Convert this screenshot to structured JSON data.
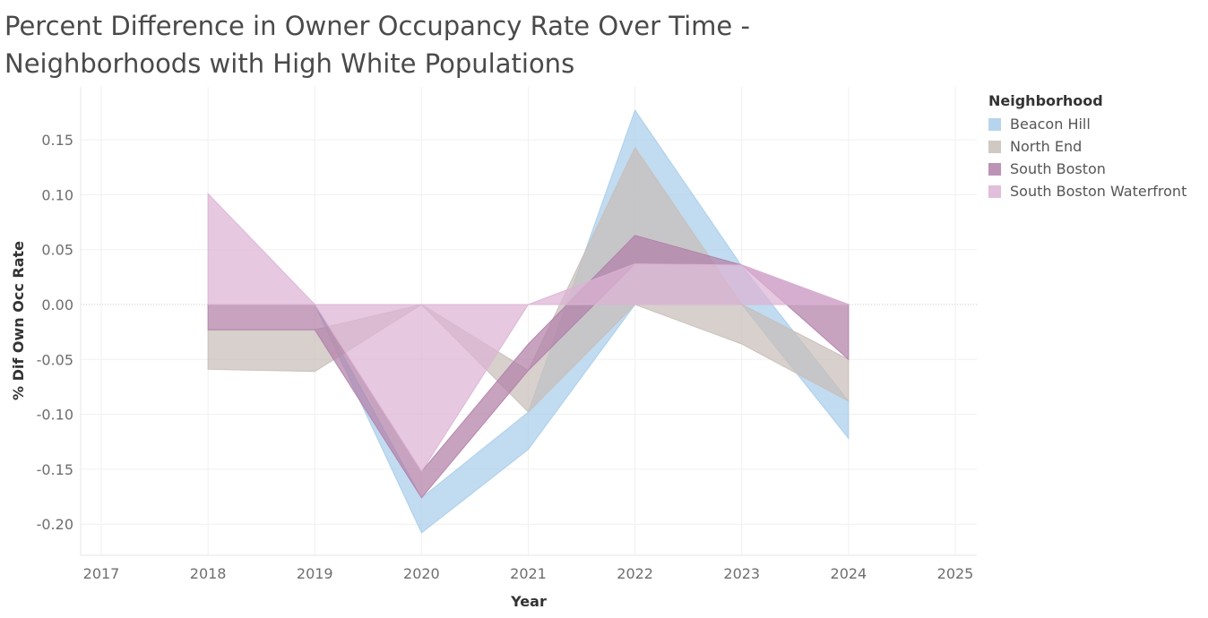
{
  "chart_data": {
    "type": "area",
    "title": "Percent Difference in Owner Occupancy Rate Over Time - Neighborhoods with High White Populations",
    "xlabel": "Year",
    "ylabel": "% Dif Own Occ Rate",
    "x_ticks": [
      "2017",
      "2018",
      "2019",
      "2020",
      "2021",
      "2022",
      "2023",
      "2024",
      "2025"
    ],
    "y_ticks": [
      "0.15",
      "0.10",
      "0.05",
      "0.00",
      "-0.05",
      "-0.10",
      "-0.15",
      "-0.20"
    ],
    "xlim": [
      2017,
      2025
    ],
    "ylim": [
      -0.225,
      0.19
    ],
    "grid": true,
    "legend": {
      "title": "Neighborhood",
      "placement": "right"
    },
    "series": [
      {
        "name": "Beacon Hill",
        "color": "#a9cdea",
        "x": [
          2019,
          2020,
          2021,
          2022,
          2023,
          2024
        ],
        "low": [
          0.0,
          -0.208,
          -0.132,
          0.0,
          0.0,
          -0.122
        ],
        "high": [
          0.0,
          -0.176,
          -0.098,
          0.177,
          0.035,
          -0.088
        ]
      },
      {
        "name": "North End",
        "color": "#c8beb8",
        "x": [
          2018,
          2019,
          2020,
          2021,
          2022,
          2023,
          2024
        ],
        "low": [
          -0.059,
          -0.061,
          0.0,
          -0.098,
          0.0,
          -0.036,
          -0.088
        ],
        "high": [
          -0.023,
          -0.023,
          0.0,
          -0.06,
          0.143,
          0.0,
          -0.05
        ]
      },
      {
        "name": "South Boston",
        "color": "#b280a8",
        "x": [
          2018,
          2019,
          2020,
          2021,
          2022,
          2023,
          2024
        ],
        "low": [
          -0.023,
          -0.023,
          -0.176,
          -0.06,
          0.037,
          0.036,
          -0.05
        ],
        "high": [
          0.0,
          0.0,
          -0.152,
          -0.036,
          0.063,
          0.036,
          0.0
        ]
      },
      {
        "name": "South Boston Waterfront",
        "color": "#dcb3d4",
        "x": [
          2018,
          2019,
          2020,
          2021,
          2022,
          2023,
          2024
        ],
        "low": [
          0.0,
          0.0,
          -0.152,
          0.0,
          0.0,
          0.0,
          0.0
        ],
        "high": [
          0.101,
          0.0,
          0.0,
          0.0,
          0.037,
          0.036,
          0.0
        ]
      }
    ]
  }
}
